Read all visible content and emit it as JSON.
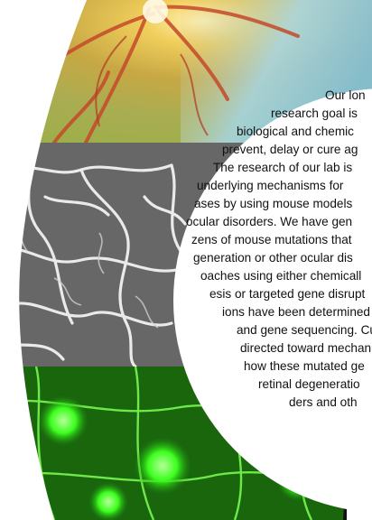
{
  "panels": [
    {
      "name": "retina-fundus-photo"
    },
    {
      "name": "retinal-vessels-micrograph"
    },
    {
      "name": "fluorescent-retina-micrograph"
    }
  ],
  "text": {
    "lines": [
      "Our lon",
      "research goal is",
      "biological and chemic",
      "prevent, delay or cure ag",
      "The research of our lab is",
      "underlying mechanisms for",
      "ases by using mouse models",
      "ocular disorders. We have gen",
      "zens of mouse mutations that",
      "generation or other ocular dis",
      "oaches using either chemicall",
      "esis or targeted gene disrupt",
      "ions have been determined",
      "and gene sequencing. Cu",
      "directed toward mechan",
      "how these mutated ge",
      "retinal degeneratio",
      "ders and oth"
    ]
  },
  "colors": {
    "fundus_orange": "#d9a43a",
    "fundus_green": "#9fae4a",
    "fundus_blue": "#8ccbe6",
    "vessel_gray": "#7a7a7a",
    "fluor_green": "#33ff1a"
  }
}
